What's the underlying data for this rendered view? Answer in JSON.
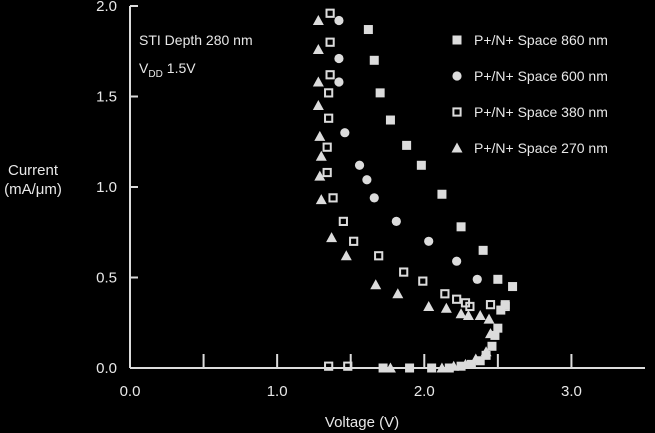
{
  "chart_data": {
    "type": "scatter",
    "xlabel": "Voltage (V)",
    "ylabel_lines": [
      "Current",
      "(mA/μm)"
    ],
    "xlim": [
      0.0,
      3.5
    ],
    "ylim": [
      0.0,
      2.0
    ],
    "x_ticks": [
      "0.0",
      "1.0",
      "2.0",
      "3.0"
    ],
    "y_ticks": [
      "0.0",
      "0.5",
      "1.0",
      "1.5",
      "2.0"
    ],
    "grid": false,
    "legend_position": "top-right",
    "annotations": {
      "line1": "STI Depth 280 nm",
      "vdd_main": "V",
      "vdd_sub": "DD",
      "vdd_value": "1.5V"
    },
    "series": [
      {
        "name": "P+/N+ Space 860 nm",
        "marker": "square-filled",
        "points": [
          [
            1.72,
            0.0
          ],
          [
            1.9,
            0.0
          ],
          [
            2.05,
            0.0
          ],
          [
            2.17,
            0.0
          ],
          [
            2.25,
            0.01
          ],
          [
            2.32,
            0.02
          ],
          [
            2.38,
            0.04
          ],
          [
            2.42,
            0.07
          ],
          [
            2.46,
            0.12
          ],
          [
            2.48,
            0.18
          ],
          [
            2.5,
            0.22
          ],
          [
            2.52,
            0.32
          ],
          [
            2.55,
            0.35
          ],
          [
            2.6,
            0.45
          ],
          [
            2.5,
            0.49
          ],
          [
            2.4,
            0.65
          ],
          [
            2.25,
            0.78
          ],
          [
            2.12,
            0.96
          ],
          [
            1.98,
            1.12
          ],
          [
            1.88,
            1.23
          ],
          [
            1.77,
            1.37
          ],
          [
            1.7,
            1.52
          ],
          [
            1.66,
            1.7
          ],
          [
            1.62,
            1.87
          ]
        ]
      },
      {
        "name": "P+/N+ Space 600 nm",
        "marker": "circle-filled",
        "points": [
          [
            1.42,
            1.92
          ],
          [
            1.42,
            1.71
          ],
          [
            1.42,
            1.58
          ],
          [
            1.46,
            1.3
          ],
          [
            1.56,
            1.12
          ],
          [
            1.61,
            1.04
          ],
          [
            1.66,
            0.94
          ],
          [
            1.81,
            0.81
          ],
          [
            2.03,
            0.7
          ],
          [
            2.22,
            0.59
          ],
          [
            2.36,
            0.49
          ]
        ]
      },
      {
        "name": "P+/N+ Space 380 nm",
        "marker": "square-hollow",
        "points": [
          [
            1.36,
            1.96
          ],
          [
            1.36,
            1.8
          ],
          [
            1.36,
            1.62
          ],
          [
            1.35,
            1.52
          ],
          [
            1.35,
            1.38
          ],
          [
            1.34,
            1.22
          ],
          [
            1.34,
            1.08
          ],
          [
            1.38,
            0.94
          ],
          [
            1.45,
            0.81
          ],
          [
            1.52,
            0.7
          ],
          [
            1.69,
            0.62
          ],
          [
            1.86,
            0.53
          ],
          [
            1.99,
            0.48
          ],
          [
            2.14,
            0.41
          ],
          [
            2.22,
            0.38
          ],
          [
            2.28,
            0.36
          ],
          [
            2.31,
            0.34
          ],
          [
            2.45,
            0.35
          ],
          [
            2.55,
            0.34
          ],
          [
            1.35,
            0.01
          ],
          [
            1.48,
            0.01
          ]
        ]
      },
      {
        "name": "P+/N+ Space 270 nm",
        "marker": "triangle-filled",
        "points": [
          [
            1.28,
            1.92
          ],
          [
            1.28,
            1.76
          ],
          [
            1.28,
            1.58
          ],
          [
            1.28,
            1.45
          ],
          [
            1.29,
            1.28
          ],
          [
            1.3,
            1.17
          ],
          [
            1.29,
            1.06
          ],
          [
            1.3,
            0.93
          ],
          [
            1.37,
            0.72
          ],
          [
            1.47,
            0.62
          ],
          [
            1.67,
            0.46
          ],
          [
            1.82,
            0.41
          ],
          [
            2.03,
            0.34
          ],
          [
            2.15,
            0.33
          ],
          [
            2.25,
            0.3
          ],
          [
            2.3,
            0.29
          ],
          [
            2.38,
            0.29
          ],
          [
            2.44,
            0.27
          ],
          [
            2.45,
            0.19
          ],
          [
            2.42,
            0.09
          ],
          [
            2.35,
            0.05
          ],
          [
            2.28,
            0.02
          ],
          [
            1.77,
            0.0
          ],
          [
            2.12,
            0.0
          ],
          [
            2.2,
            0.01
          ]
        ]
      }
    ]
  }
}
